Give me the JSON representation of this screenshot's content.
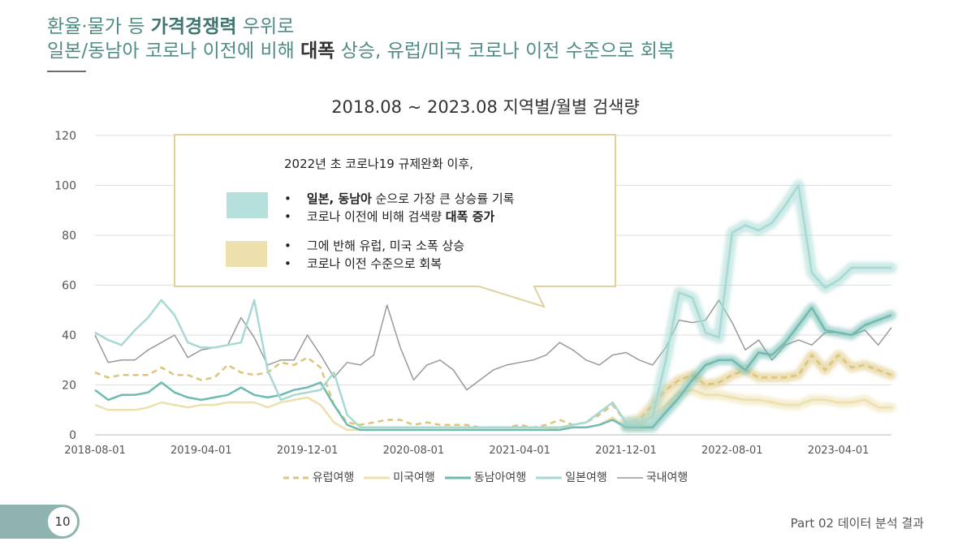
{
  "headline": {
    "line1_a": "환율·물가 등 ",
    "line1_b": "가격경쟁력",
    "line1_c": " 우위로",
    "line2_a": "일본/동남아 코로나 이전에 비해 ",
    "line2_b": "대폭",
    "line2_c": " 상승, 유럽/미국 코로나 이전 수준으로 회복"
  },
  "callout": {
    "heading": "2022년 초 코로나19 규제완화 이후,",
    "group1": {
      "color": "#b5e0dc",
      "b1_bold": "일본, 동남아",
      "b1_rest": " 순으로 가장 큰 상승률 기록",
      "b2_a": "코로나 이전에 비해 검색량 ",
      "b2_bold": "대폭 증가"
    },
    "group2": {
      "color": "#ede0ac",
      "b1": "그에 반해 유럽, 미국 소폭 상승",
      "b2": "코로나 이전 수준으로 회복"
    }
  },
  "footer": {
    "page_number": "10",
    "section": "Part 02 데이터 분석 결과"
  },
  "chart_data": {
    "type": "line",
    "title": "2018.08 ~ 2023.08 지역별/월별 검색량",
    "ylim": [
      0,
      120
    ],
    "yticks": [
      0,
      20,
      40,
      60,
      80,
      100,
      120
    ],
    "x_tick_labels": [
      "2018-08-01",
      "2019-04-01",
      "2019-12-01",
      "2020-08-01",
      "2021-04-01",
      "2021-12-01",
      "2022-08-01",
      "2023-04-01"
    ],
    "grid": true,
    "legend_position": "bottom",
    "x": [
      "2018-08",
      "2018-09",
      "2018-10",
      "2018-11",
      "2018-12",
      "2019-01",
      "2019-02",
      "2019-03",
      "2019-04",
      "2019-05",
      "2019-06",
      "2019-07",
      "2019-08",
      "2019-09",
      "2019-10",
      "2019-11",
      "2019-12",
      "2020-01",
      "2020-02",
      "2020-03",
      "2020-04",
      "2020-05",
      "2020-06",
      "2020-07",
      "2020-08",
      "2020-09",
      "2020-10",
      "2020-11",
      "2020-12",
      "2021-01",
      "2021-02",
      "2021-03",
      "2021-04",
      "2021-05",
      "2021-06",
      "2021-07",
      "2021-08",
      "2021-09",
      "2021-10",
      "2021-11",
      "2021-12",
      "2022-01",
      "2022-02",
      "2022-03",
      "2022-04",
      "2022-05",
      "2022-06",
      "2022-07",
      "2022-08",
      "2022-09",
      "2022-10",
      "2022-11",
      "2022-12",
      "2023-01",
      "2023-02",
      "2023-03",
      "2023-04",
      "2023-05",
      "2023-06",
      "2023-07",
      "2023-08"
    ],
    "series": [
      {
        "name": "유럽여행",
        "color": "#dcc47a",
        "style": "dashed",
        "values": [
          25,
          23,
          24,
          24,
          24,
          27,
          24,
          24,
          22,
          23,
          28,
          25,
          24,
          25,
          29,
          28,
          31,
          27,
          12,
          5,
          4,
          5,
          6,
          6,
          4,
          5,
          4,
          4,
          4,
          3,
          3,
          3,
          4,
          3,
          4,
          6,
          4,
          5,
          8,
          12,
          5,
          6,
          12,
          18,
          22,
          24,
          20,
          21,
          24,
          26,
          23,
          23,
          23,
          24,
          32,
          26,
          32,
          27,
          28,
          26,
          24
        ]
      },
      {
        "name": "미국여행",
        "color": "#ede0ac",
        "style": "solid",
        "values": [
          12,
          10,
          10,
          10,
          11,
          13,
          12,
          11,
          12,
          12,
          13,
          13,
          13,
          11,
          13,
          14,
          15,
          12,
          5,
          2,
          2,
          2,
          2,
          2,
          2,
          2,
          2,
          2,
          2,
          2,
          2,
          2,
          2,
          2,
          2,
          3,
          3,
          3,
          4,
          7,
          3,
          3,
          8,
          12,
          17,
          18,
          16,
          16,
          15,
          14,
          14,
          13,
          12,
          12,
          14,
          14,
          13,
          13,
          14,
          11,
          11
        ]
      },
      {
        "name": "동남아여행",
        "color": "#6fbab1",
        "style": "solid",
        "values": [
          18,
          14,
          16,
          16,
          17,
          21,
          17,
          15,
          14,
          15,
          16,
          19,
          16,
          15,
          16,
          18,
          19,
          21,
          12,
          4,
          2,
          2,
          2,
          2,
          2,
          2,
          2,
          2,
          2,
          2,
          2,
          2,
          2,
          2,
          2,
          2,
          3,
          3,
          4,
          6,
          3,
          3,
          3,
          9,
          15,
          22,
          28,
          30,
          30,
          26,
          33,
          32,
          37,
          44,
          51,
          42,
          41,
          40,
          44,
          46,
          48
        ]
      },
      {
        "name": "일본여행",
        "color": "#a6d9d3",
        "style": "solid",
        "values": [
          41,
          38,
          36,
          42,
          47,
          54,
          48,
          37,
          35,
          35,
          36,
          37,
          54,
          26,
          14,
          16,
          17,
          18,
          25,
          8,
          3,
          3,
          3,
          3,
          3,
          3,
          3,
          3,
          3,
          3,
          3,
          3,
          3,
          3,
          3,
          3,
          4,
          5,
          9,
          13,
          5,
          5,
          7,
          30,
          57,
          55,
          41,
          39,
          81,
          84,
          82,
          85,
          92,
          100,
          65,
          59,
          62,
          67,
          67,
          67,
          67
        ]
      },
      {
        "name": "국내여행",
        "color": "#999999",
        "style": "solid",
        "values": [
          40,
          29,
          30,
          30,
          34,
          37,
          40,
          31,
          34,
          35,
          36,
          47,
          39,
          28,
          30,
          30,
          40,
          32,
          23,
          29,
          28,
          32,
          52,
          35,
          22,
          28,
          30,
          26,
          18,
          22,
          26,
          28,
          29,
          30,
          32,
          37,
          34,
          30,
          28,
          32,
          33,
          30,
          28,
          35,
          46,
          45,
          46,
          54,
          45,
          34,
          38,
          30,
          36,
          38,
          36,
          41,
          41,
          40,
          42,
          36,
          43
        ]
      }
    ]
  }
}
